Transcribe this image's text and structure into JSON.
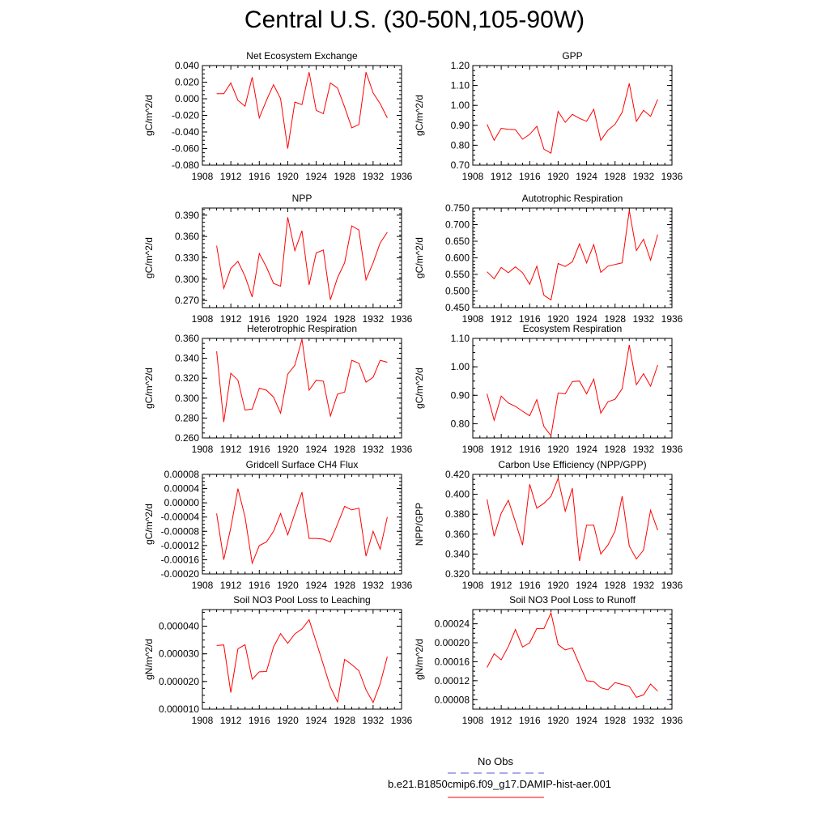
{
  "title": "Central U.S. (30-50N,105-90W)",
  "x_years": [
    1910,
    1911,
    1912,
    1913,
    1914,
    1915,
    1916,
    1917,
    1918,
    1919,
    1920,
    1921,
    1922,
    1923,
    1924,
    1925,
    1926,
    1927,
    1928,
    1929,
    1930,
    1931,
    1932,
    1933,
    1934
  ],
  "x_ticks": [
    1908,
    1912,
    1916,
    1920,
    1924,
    1928,
    1932,
    1936
  ],
  "line_color": "#ff0000",
  "obs_color": "#5555dd",
  "chart_data": [
    {
      "type": "line",
      "title": "Net Ecosystem Exchange",
      "ylabel": "gC/m^2/d",
      "xlim": [
        1908,
        1936
      ],
      "ylim": [
        -0.08,
        0.04
      ],
      "yticks": [
        -0.08,
        -0.06,
        -0.04,
        -0.02,
        0.0,
        0.02,
        0.04
      ],
      "ytick_labels": [
        "-0.080",
        "-0.060",
        "-0.040",
        "-0.020",
        "0.000",
        "0.020",
        "0.040"
      ],
      "yminor": 0.005,
      "values": [
        0.006,
        0.006,
        0.019,
        -0.002,
        -0.009,
        0.026,
        -0.023,
        -0.002,
        0.017,
        0.0,
        -0.06,
        -0.004,
        -0.007,
        0.032,
        -0.014,
        -0.018,
        0.019,
        0.013,
        -0.01,
        -0.035,
        -0.031,
        0.032,
        0.007,
        -0.006,
        -0.023
      ]
    },
    {
      "type": "line",
      "title": "GPP",
      "ylabel": "gC/m^2/d",
      "xlim": [
        1908,
        1936
      ],
      "ylim": [
        0.7,
        1.2
      ],
      "yticks": [
        0.7,
        0.8,
        0.9,
        1.0,
        1.1,
        1.2
      ],
      "ytick_labels": [
        "0.70",
        "0.80",
        "0.90",
        "1.00",
        "1.10",
        "1.20"
      ],
      "yminor": 0.025,
      "values": [
        0.905,
        0.825,
        0.885,
        0.88,
        0.878,
        0.83,
        0.855,
        0.895,
        0.78,
        0.76,
        0.97,
        0.915,
        0.955,
        0.935,
        0.92,
        0.98,
        0.825,
        0.875,
        0.905,
        0.965,
        1.11,
        0.92,
        0.975,
        0.945,
        1.03
      ]
    },
    {
      "type": "line",
      "title": "NPP",
      "ylabel": "gC/m^2/d",
      "xlim": [
        1908,
        1936
      ],
      "ylim": [
        0.26,
        0.4
      ],
      "yticks": [
        0.27,
        0.3,
        0.33,
        0.36,
        0.39
      ],
      "ytick_labels": [
        "0.270",
        "0.300",
        "0.330",
        "0.360",
        "0.390"
      ],
      "yminor": 0.006,
      "values": [
        0.347,
        0.287,
        0.315,
        0.325,
        0.304,
        0.275,
        0.336,
        0.317,
        0.294,
        0.29,
        0.387,
        0.34,
        0.368,
        0.292,
        0.337,
        0.341,
        0.271,
        0.302,
        0.323,
        0.375,
        0.369,
        0.299,
        0.323,
        0.351,
        0.366
      ]
    },
    {
      "type": "line",
      "title": "Autotrophic Respiration",
      "ylabel": "gC/m^2/d",
      "xlim": [
        1908,
        1936
      ],
      "ylim": [
        0.45,
        0.75
      ],
      "yticks": [
        0.45,
        0.5,
        0.55,
        0.6,
        0.65,
        0.7,
        0.75
      ],
      "ytick_labels": [
        "0.450",
        "0.500",
        "0.550",
        "0.600",
        "0.650",
        "0.700",
        "0.750"
      ],
      "yminor": 0.01,
      "values": [
        0.558,
        0.537,
        0.571,
        0.555,
        0.573,
        0.555,
        0.52,
        0.575,
        0.487,
        0.473,
        0.583,
        0.574,
        0.588,
        0.642,
        0.585,
        0.64,
        0.556,
        0.575,
        0.58,
        0.585,
        0.743,
        0.622,
        0.656,
        0.593,
        0.67
      ]
    },
    {
      "type": "line",
      "title": "Heterotrophic Respiration",
      "ylabel": "gC/m^2/d",
      "xlim": [
        1908,
        1936
      ],
      "ylim": [
        0.26,
        0.36
      ],
      "yticks": [
        0.26,
        0.28,
        0.3,
        0.32,
        0.34,
        0.36
      ],
      "ytick_labels": [
        "0.260",
        "0.280",
        "0.300",
        "0.320",
        "0.340",
        "0.360"
      ],
      "yminor": 0.005,
      "values": [
        0.347,
        0.276,
        0.325,
        0.318,
        0.288,
        0.289,
        0.31,
        0.308,
        0.301,
        0.285,
        0.324,
        0.333,
        0.359,
        0.308,
        0.318,
        0.317,
        0.282,
        0.304,
        0.306,
        0.338,
        0.335,
        0.316,
        0.321,
        0.338,
        0.336
      ]
    },
    {
      "type": "line",
      "title": "Ecosystem Respiration",
      "ylabel": "gC/m^2/d",
      "xlim": [
        1908,
        1936
      ],
      "ylim": [
        0.75,
        1.1
      ],
      "yticks": [
        0.8,
        0.9,
        1.0,
        1.1
      ],
      "ytick_labels": [
        "0.80",
        "0.90",
        "1.00",
        "1.10"
      ],
      "yminor": 0.025,
      "values": [
        0.905,
        0.812,
        0.897,
        0.873,
        0.861,
        0.844,
        0.828,
        0.885,
        0.79,
        0.758,
        0.908,
        0.905,
        0.948,
        0.95,
        0.905,
        0.957,
        0.837,
        0.877,
        0.886,
        0.923,
        1.077,
        0.937,
        0.976,
        0.932,
        1.006
      ]
    },
    {
      "type": "line",
      "title": "Gridcell Surface CH4 Flux",
      "ylabel": "gC/m^2/d",
      "xlim": [
        1908,
        1936
      ],
      "ylim": [
        -0.0002,
        8e-05
      ],
      "yticks": [
        -0.0002,
        -0.00016,
        -0.00012,
        -8e-05,
        -4e-05,
        0.0,
        4e-05,
        8e-05
      ],
      "ytick_labels": [
        "-0.00020",
        "-0.00016",
        "-0.00012",
        "-0.00008",
        "-0.00004",
        "0.00000",
        "0.00004",
        "0.00008"
      ],
      "yminor": 1e-05,
      "values": [
        -3e-05,
        -0.00016,
        -7e-05,
        4e-05,
        -4e-05,
        -0.00017,
        -0.00012,
        -0.00011,
        -8e-05,
        -3e-05,
        -9e-05,
        -3e-05,
        3e-05,
        -0.0001,
        -0.0001,
        -0.000102,
        -0.00011,
        -6e-05,
        -1e-05,
        -2e-05,
        -1.5e-05,
        -0.00015,
        -8e-05,
        -0.00013,
        -4e-05
      ]
    },
    {
      "type": "line",
      "title": "Carbon Use Efficiency (NPP/GPP)",
      "ylabel": "NPP/GPP",
      "xlim": [
        1908,
        1936
      ],
      "ylim": [
        0.32,
        0.42
      ],
      "yticks": [
        0.32,
        0.34,
        0.36,
        0.38,
        0.4,
        0.42
      ],
      "ytick_labels": [
        "0.320",
        "0.340",
        "0.360",
        "0.380",
        "0.400",
        "0.420"
      ],
      "yminor": 0.005,
      "values": [
        0.395,
        0.358,
        0.381,
        0.394,
        0.372,
        0.349,
        0.41,
        0.386,
        0.391,
        0.398,
        0.416,
        0.383,
        0.406,
        0.333,
        0.369,
        0.369,
        0.34,
        0.349,
        0.363,
        0.398,
        0.348,
        0.335,
        0.344,
        0.384,
        0.364
      ]
    },
    {
      "type": "line",
      "title": "Soil NO3 Pool Loss to Leaching",
      "ylabel": "gN/m^2/d",
      "xlim": [
        1908,
        1936
      ],
      "ylim": [
        1e-05,
        4.6e-05
      ],
      "yticks": [
        1e-05,
        2e-05,
        3e-05,
        4e-05
      ],
      "ytick_labels": [
        "0.000010",
        "0.000020",
        "0.000030",
        "0.000040"
      ],
      "yminor": 2.5e-06,
      "values": [
        3.3e-05,
        3.32e-05,
        1.6e-05,
        3.18e-05,
        3.33e-05,
        2.08e-05,
        2.35e-05,
        2.36e-05,
        3.25e-05,
        3.73e-05,
        3.38e-05,
        3.72e-05,
        3.9e-05,
        4.23e-05,
        3.43e-05,
        2.61e-05,
        1.8e-05,
        1.26e-05,
        2.8e-05,
        2.61e-05,
        2.39e-05,
        1.7e-05,
        1.24e-05,
        1.92e-05,
        2.9e-05
      ]
    },
    {
      "type": "line",
      "title": "Soil NO3 Pool Loss to Runoff",
      "ylabel": "gN/m^2/d",
      "xlim": [
        1908,
        1936
      ],
      "ylim": [
        6e-05,
        0.00027
      ],
      "yticks": [
        8e-05,
        0.00012,
        0.00016,
        0.0002,
        0.00024
      ],
      "ytick_labels": [
        "0.00008",
        "0.00012",
        "0.00016",
        "0.00020",
        "0.00024"
      ],
      "yminor": 1e-05,
      "values": [
        0.000148,
        0.000177,
        0.000164,
        0.000192,
        0.000228,
        0.000191,
        0.0002,
        0.00023,
        0.00023,
        0.000263,
        0.000196,
        0.000185,
        0.000189,
        0.000154,
        0.00012,
        0.000118,
        0.000105,
        0.000101,
        0.000116,
        0.000112,
        0.000108,
        8.5e-05,
        9e-05,
        0.000113,
        9.8e-05
      ]
    }
  ],
  "legend": {
    "obs_label": "No Obs",
    "case_label": "b.e21.B1850cmip6.f09_g17.DAMIP-hist-aer.001"
  }
}
